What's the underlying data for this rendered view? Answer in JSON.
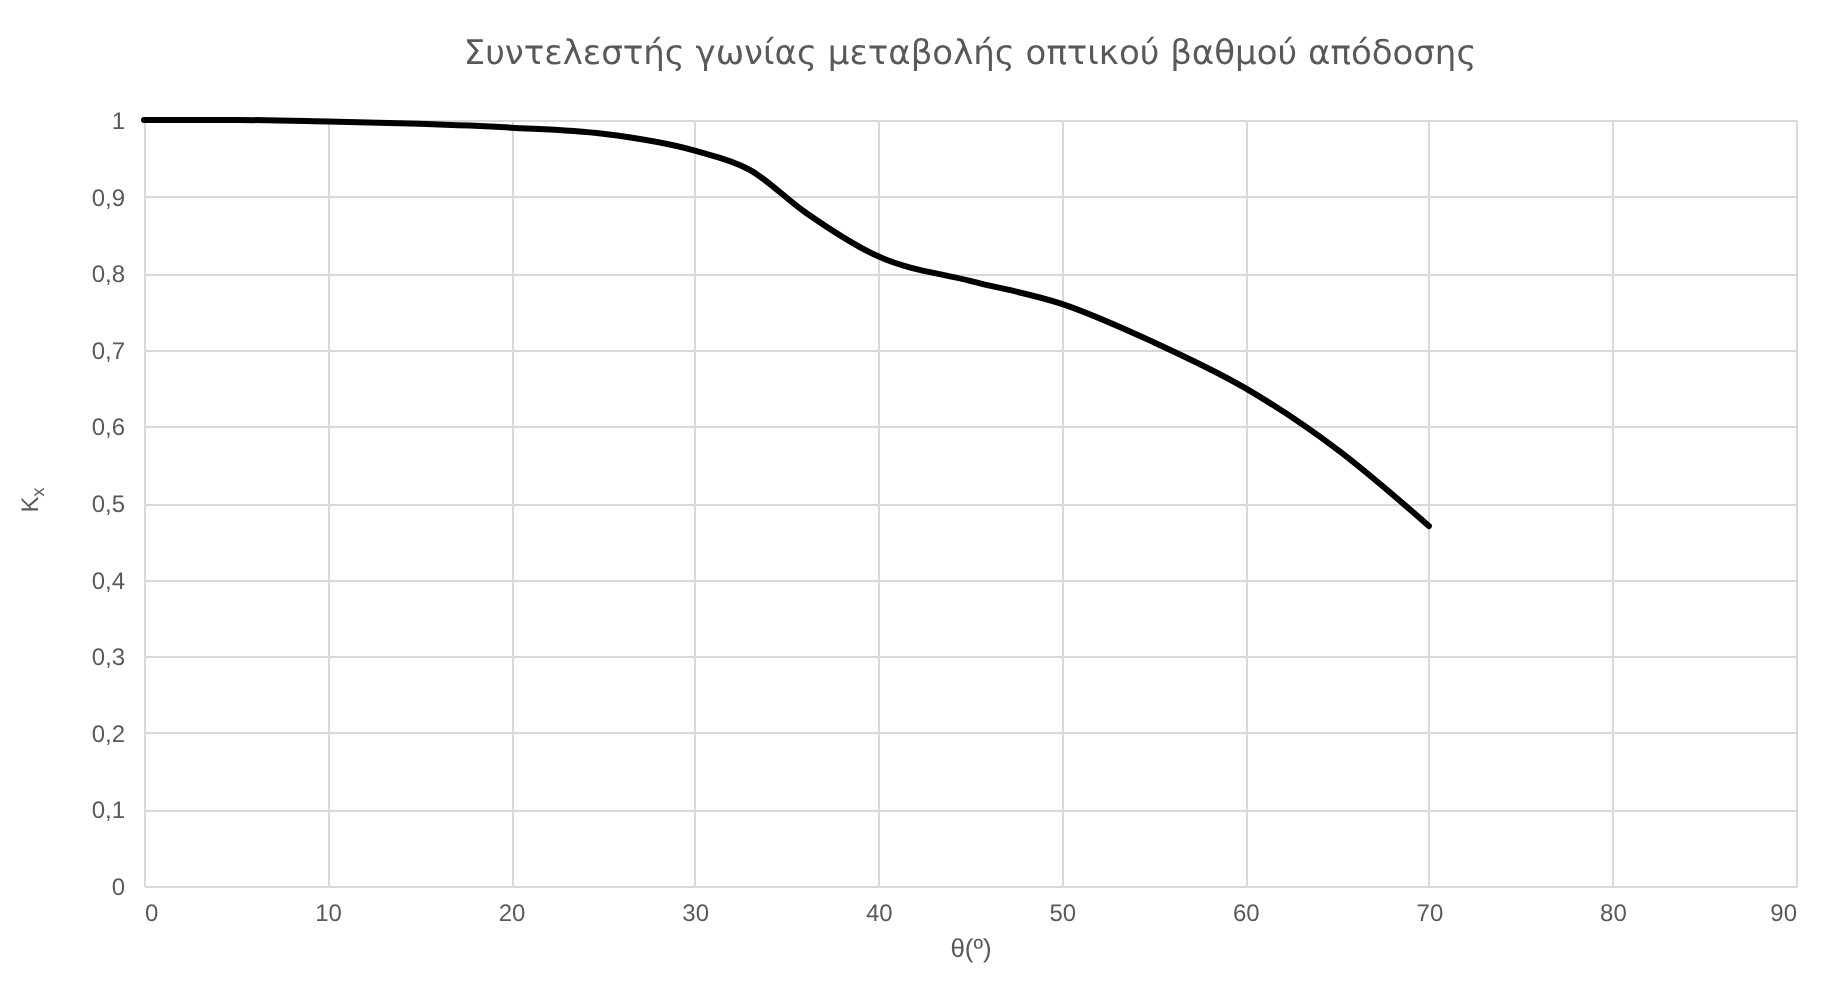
{
  "chart_data": {
    "type": "line",
    "title": "Συντελεστής γωνίας μεταβολής οπτικού βαθμού απόδοσης",
    "xlabel": "θ(º)",
    "ylabel": "K$_{x}$",
    "x": [
      0,
      5,
      10,
      15,
      20,
      25,
      30,
      33,
      36,
      40,
      45,
      50,
      55,
      60,
      65,
      70
    ],
    "series": [
      {
        "color": "#000000",
        "values": [
          1.0,
          1.0,
          0.998,
          0.995,
          0.99,
          0.982,
          0.96,
          0.935,
          0.88,
          0.822,
          0.79,
          0.76,
          0.71,
          0.65,
          0.57,
          0.47
        ]
      }
    ],
    "xlim": [
      0,
      90
    ],
    "xticks": [
      0,
      10,
      20,
      30,
      40,
      50,
      60,
      70,
      80,
      90
    ],
    "ylim": [
      0,
      1
    ],
    "yticks": [
      0,
      {
        "value": 0.1,
        "label": "0,1"
      },
      {
        "value": 0.2,
        "label": "0,2"
      },
      {
        "value": 0.3,
        "label": "0,3"
      },
      {
        "value": 0.4,
        "label": "0,4"
      },
      {
        "value": 0.5,
        "label": "0,5"
      },
      {
        "value": 0.6,
        "label": "0,6"
      },
      {
        "value": 0.7,
        "label": "0,7"
      },
      {
        "value": 0.8,
        "label": "0,8"
      },
      {
        "value": 0.9,
        "label": "0,9"
      },
      1
    ],
    "grid": true,
    "marker": "none",
    "line_style": "solid"
  }
}
